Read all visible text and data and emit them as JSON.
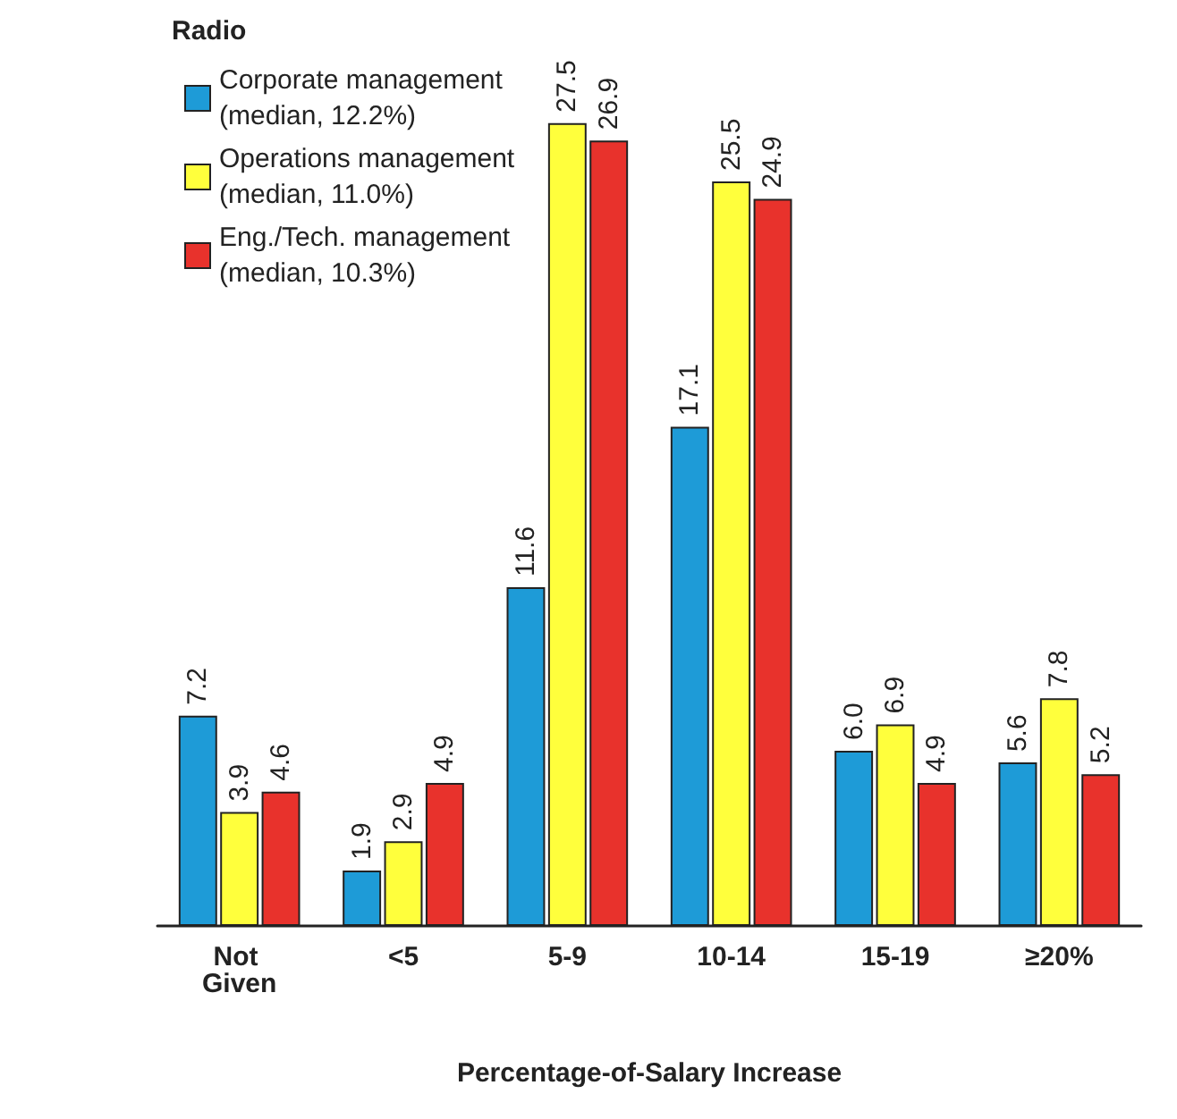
{
  "chart_data": {
    "type": "bar",
    "legend_title": "Radio",
    "xlabel": "Percentage-of-Salary Increase",
    "categories": [
      "Not Given",
      "<5",
      "5-9",
      "10-14",
      "15-19",
      "≥20%"
    ],
    "series": [
      {
        "name": "Corporate management\n(median, 12.2%)",
        "color": "#1e9bd7",
        "values": [
          7.2,
          1.9,
          11.6,
          17.1,
          6.0,
          5.6
        ],
        "value_labels": [
          "7.2",
          "1.9",
          "11.6",
          "17.1",
          "6.0",
          "5.6"
        ]
      },
      {
        "name": "Operations management\n(median, 11.0%)",
        "color": "#ffff3c",
        "values": [
          3.9,
          2.9,
          27.5,
          25.5,
          6.9,
          7.8
        ],
        "value_labels": [
          "3.9",
          "2.9",
          "27.5",
          "25.5",
          "6.9",
          "7.8"
        ]
      },
      {
        "name": "Eng./Tech. management\n(median, 10.3%)",
        "color": "#e8322c",
        "values": [
          4.6,
          4.9,
          26.9,
          24.9,
          4.9,
          5.2
        ],
        "value_labels": [
          "4.6",
          "4.9",
          "26.9",
          "24.9",
          "4.9",
          "5.2"
        ]
      }
    ],
    "legend": "top left",
    "grid": false
  }
}
